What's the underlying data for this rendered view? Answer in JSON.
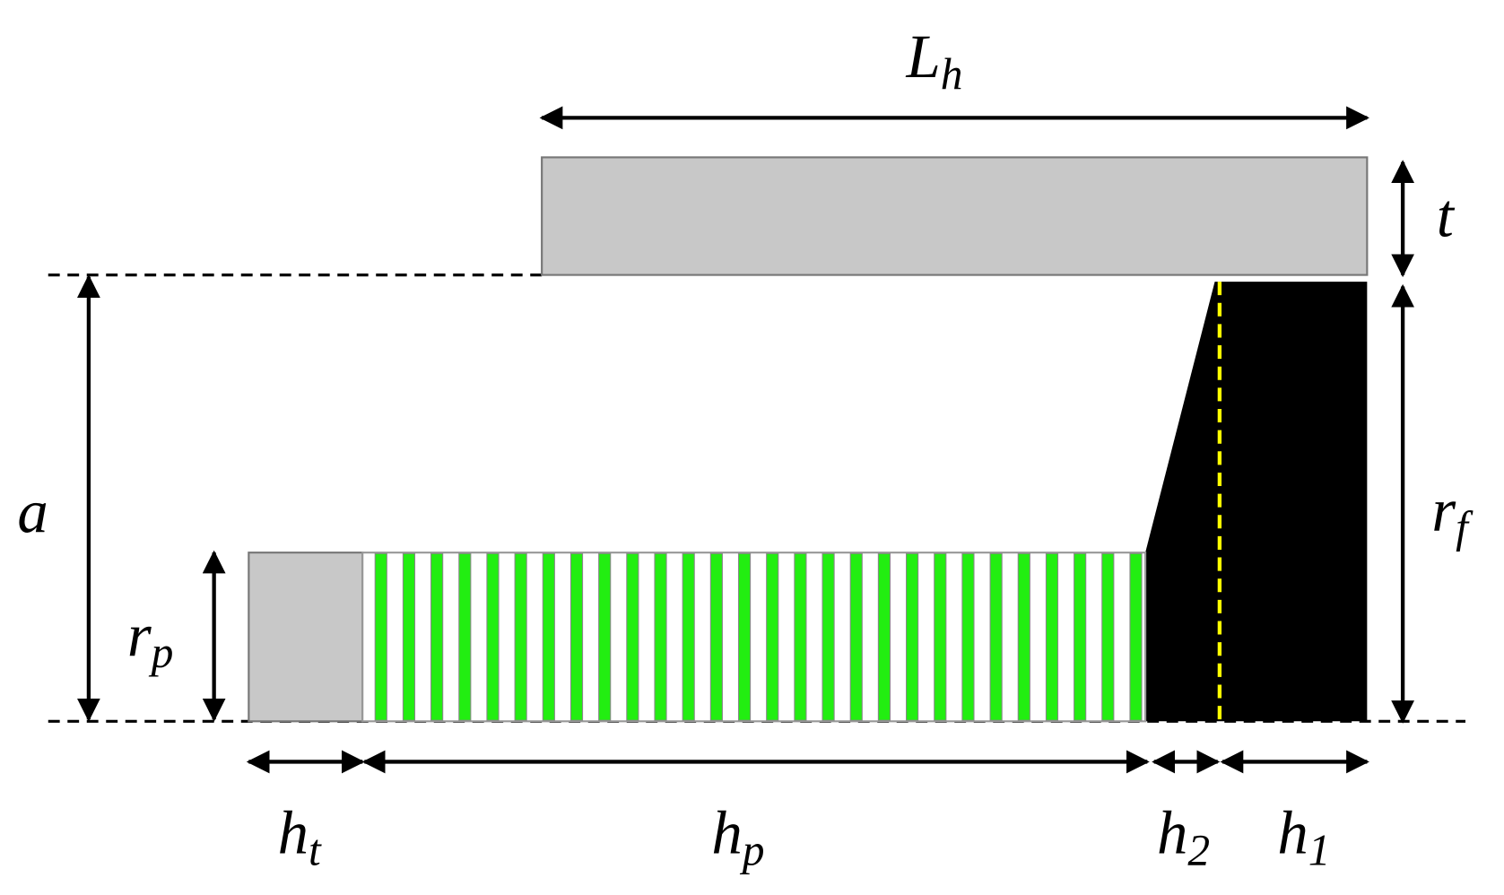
{
  "labels": {
    "L_h": {
      "symbol": "L",
      "subscript": "h"
    },
    "t": {
      "symbol": "t"
    },
    "a": {
      "symbol": "a"
    },
    "r_f": {
      "symbol": "r",
      "subscript": "f"
    },
    "r_p": {
      "symbol": "r",
      "subscript": "p"
    },
    "h_t": {
      "symbol": "h",
      "subscript": "t"
    },
    "h_p": {
      "symbol": "h",
      "subscript": "p"
    },
    "h_2": {
      "symbol": "h",
      "subscript": "2"
    },
    "h_1": {
      "symbol": "h",
      "subscript": "1"
    }
  }
}
